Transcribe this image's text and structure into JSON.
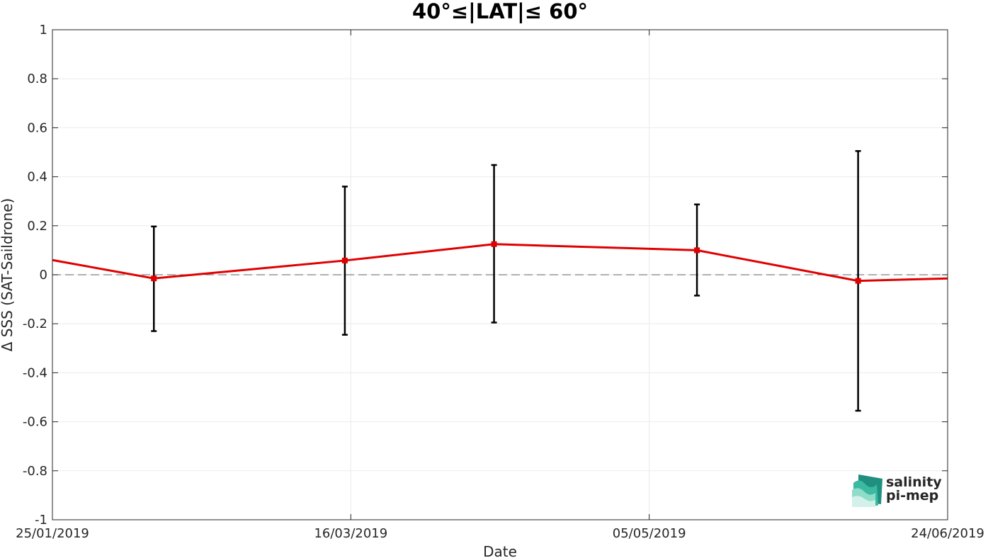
{
  "chart_data": {
    "type": "line",
    "title": "40°≤|LAT|≤ 60°",
    "xlabel": "Date",
    "ylabel": "Δ SSS (SAT-Saildrone)",
    "ylim": [
      -1,
      1
    ],
    "yticks": [
      -1,
      -0.8,
      -0.6,
      -0.4,
      -0.2,
      0,
      0.2,
      0.4,
      0.6,
      0.8,
      1
    ],
    "ytick_labels": [
      "-1",
      "-0.8",
      "-0.6",
      "-0.4",
      "-0.2",
      "0",
      "0.2",
      "0.4",
      "0.6",
      "0.8",
      "1"
    ],
    "xlim": [
      "2019-01-25",
      "2019-06-24"
    ],
    "xticks": [
      "2019-01-25",
      "2019-03-16",
      "2019-05-05",
      "2019-06-24"
    ],
    "xtick_labels": [
      "25/01/2019",
      "16/03/2019",
      "05/05/2019",
      "24/06/2019"
    ],
    "grid": true,
    "reference_line": {
      "y": 0,
      "style": "dashed",
      "color": "#808080"
    },
    "series": [
      {
        "color": "#e00000",
        "marker": "square",
        "line_start": {
          "x": "2019-01-25",
          "y": 0.06
        },
        "line_end": {
          "x": "2019-06-24",
          "y": -0.015
        },
        "points": [
          {
            "x": "2019-02-11",
            "y": -0.015,
            "err_low": -0.23,
            "err_high": 0.197
          },
          {
            "x": "2019-03-15",
            "y": 0.058,
            "err_low": -0.245,
            "err_high": 0.36
          },
          {
            "x": "2019-04-09",
            "y": 0.125,
            "err_low": -0.195,
            "err_high": 0.448
          },
          {
            "x": "2019-05-13",
            "y": 0.1,
            "err_low": -0.085,
            "err_high": 0.287
          },
          {
            "x": "2019-06-09",
            "y": -0.025,
            "err_low": -0.555,
            "err_high": 0.505
          }
        ]
      }
    ],
    "errorbar_color": "#000000"
  },
  "logo": {
    "line1": "salinity",
    "line2": "pi-mep",
    "color1": "#1fb39a",
    "color2": "#1e5b52"
  }
}
